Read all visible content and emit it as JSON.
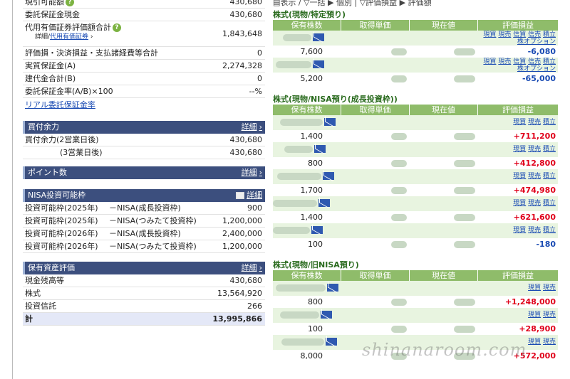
{
  "left": {
    "rows_top": [
      {
        "label": "現引可能額",
        "value": "430,680",
        "help": true
      },
      {
        "label": "委託保証金現金",
        "value": "430,680"
      }
    ],
    "substitute": {
      "label": "代用有価証券評価額合計",
      "value": "1,843,648",
      "detail_prefix": "詳細/",
      "detail_link": "代用有価証券",
      "arrow": "›"
    },
    "rows_mid": [
      {
        "label": "評価損・決済損益・支払諸経費等合計",
        "value": "0"
      },
      {
        "label": "実質保証金(A)",
        "value": "2,274,328"
      },
      {
        "label": "建代金合計(B)",
        "value": "0"
      },
      {
        "label": "委託保証金率(A/B)×100",
        "value": "--%"
      }
    ],
    "real_link": "リアル委託保証金率",
    "buying_power": {
      "title": "買付余力",
      "detail": "詳細",
      "rows": [
        {
          "label": "買付余力(2営業日後)",
          "value": "430,680"
        },
        {
          "label": "(3営業日後)",
          "value": "430,680"
        }
      ]
    },
    "points": {
      "title": "ポイント数",
      "detail": "詳細"
    },
    "nisa": {
      "title": "NISA投資可能枠",
      "detail": "詳細",
      "rows": [
        {
          "label": "投資可能枠(2025年)",
          "kind": "－NISA(成長投資枠)",
          "value": "900"
        },
        {
          "label": "投資可能枠(2025年)",
          "kind": "－NISA(つみたて投資枠)",
          "value": "1,200,000"
        },
        {
          "label": "投資可能枠(2026年)",
          "kind": "－NISA(成長投資枠)",
          "value": "2,400,000"
        },
        {
          "label": "投資可能枠(2026年)",
          "kind": "－NISA(つみたて投資枠)",
          "value": "1,200,000"
        }
      ]
    },
    "assets": {
      "title": "保有資産評価",
      "detail": "詳細",
      "rows": [
        {
          "label": "現金残高等",
          "value": "430,680"
        },
        {
          "label": "株式",
          "value": "13,564,920"
        },
        {
          "label": "投資信託",
          "value": "266"
        }
      ],
      "total": {
        "label": "計",
        "value": "13,995,866"
      }
    }
  },
  "right": {
    "topbar": "▤表示 / ▽一括 ▶ 個別 | ▽評価損益 ▶ 評価額",
    "columns": [
      "保有株数",
      "取得単価",
      "現在値",
      "評価損益"
    ],
    "sections": [
      {
        "title": "株式(現物/特定預り)",
        "rows": [
          {
            "links": [
              "現買",
              "現売",
              "信買",
              "信売",
              "積立",
              "株オプション"
            ],
            "qty": "7,600",
            "pl": "-6,080",
            "sign": "neg"
          },
          {
            "links": [
              "現買",
              "現売",
              "信買",
              "信売",
              "積立",
              "株オプション"
            ],
            "qty": "5,200",
            "pl": "-65,000",
            "sign": "neg"
          }
        ]
      },
      {
        "title": "株式(現物/NISA預り(成長投資枠))",
        "rows": [
          {
            "links": [
              "現買",
              "現売",
              "積立"
            ],
            "qty": "1,400",
            "pl": "+711,200",
            "sign": "pos"
          },
          {
            "links": [
              "現買",
              "現売",
              "積立"
            ],
            "qty": "800",
            "pl": "+412,800",
            "sign": "pos"
          },
          {
            "links": [
              "現買",
              "現売",
              "積立"
            ],
            "qty": "1,700",
            "pl": "+474,980",
            "sign": "pos"
          },
          {
            "links": [
              "現買",
              "現売",
              "積立"
            ],
            "qty": "1,400",
            "pl": "+621,600",
            "sign": "pos"
          },
          {
            "links": [
              "現買",
              "現売",
              "積立"
            ],
            "qty": "100",
            "pl": "-180",
            "sign": "neg"
          }
        ]
      },
      {
        "title": "株式(現物/旧NISA預り)",
        "rows": [
          {
            "links": [
              "現買",
              "現売"
            ],
            "qty": "800",
            "pl": "+1,248,000",
            "sign": "pos"
          },
          {
            "links": [
              "現買",
              "現売"
            ],
            "qty": "100",
            "pl": "+28,900",
            "sign": "pos"
          },
          {
            "links": [
              "現買",
              "現売"
            ],
            "qty": "8,000",
            "pl": "+572,000",
            "sign": "pos"
          }
        ]
      }
    ]
  },
  "watermark": "shinanaroom.com"
}
